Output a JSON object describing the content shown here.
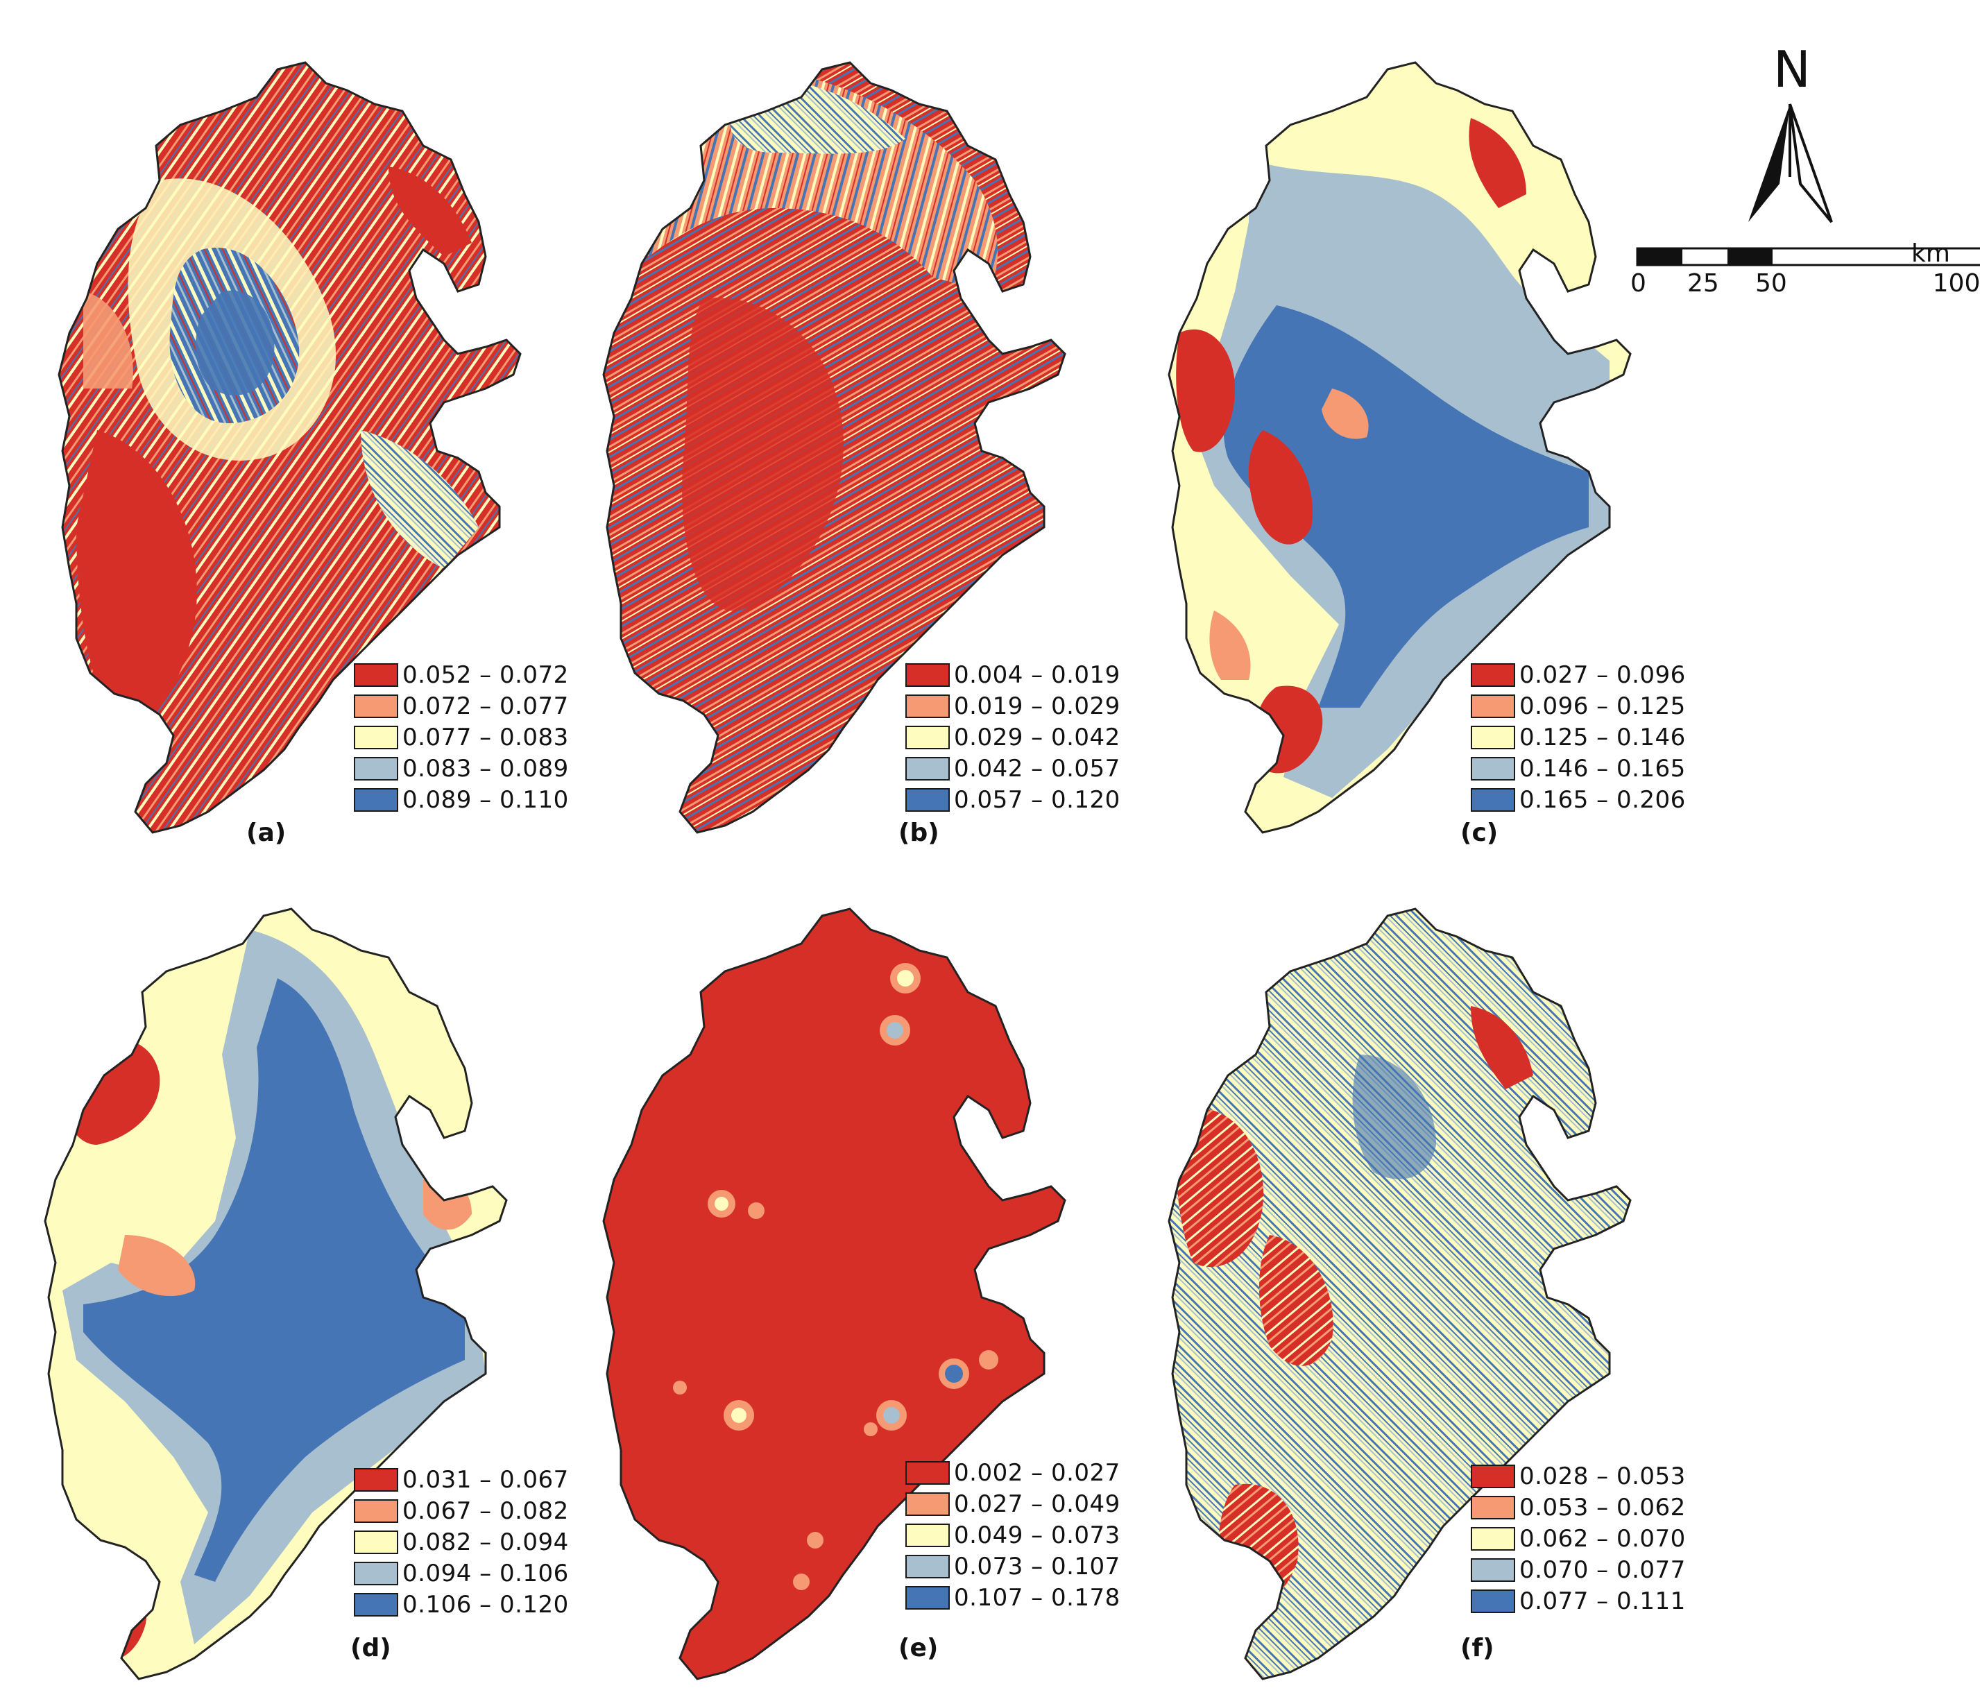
{
  "colors": {
    "class1": "#d62f27",
    "class2": "#f59a72",
    "class3": "#fefdbf",
    "class4": "#a8bfcf",
    "class5": "#4575b4",
    "outline": "#222222"
  },
  "panels": [
    {
      "label": "(a)",
      "legend": [
        "0.052 – 0.072",
        "0.072 – 0.077",
        "0.077 – 0.083",
        "0.083 – 0.089",
        "0.089 – 0.110"
      ]
    },
    {
      "label": "(b)",
      "legend": [
        "0.004 – 0.019",
        "0.019 – 0.029",
        "0.029 – 0.042",
        "0.042 – 0.057",
        "0.057 – 0.120"
      ]
    },
    {
      "label": "(c)",
      "legend": [
        "0.027 – 0.096",
        "0.096 – 0.125",
        "0.125 – 0.146",
        "0.146 – 0.165",
        "0.165 – 0.206"
      ]
    },
    {
      "label": "(d)",
      "legend": [
        "0.031 – 0.067",
        "0.067 – 0.082",
        "0.082 – 0.094",
        "0.094 – 0.106",
        "0.106 – 0.120"
      ]
    },
    {
      "label": "(e)",
      "legend": [
        "0.002 – 0.027",
        "0.027 – 0.049",
        "0.049 – 0.073",
        "0.073 – 0.107",
        "0.107 – 0.178"
      ]
    },
    {
      "label": "(f)",
      "legend": [
        "0.028 – 0.053",
        "0.053 – 0.062",
        "0.062 – 0.070",
        "0.070 – 0.077",
        "0.077 – 0.111"
      ]
    }
  ],
  "north_arrow": {
    "letter": "N",
    "icon": "north-arrow-icon"
  },
  "scale_bar": {
    "ticks": [
      "0",
      "25",
      "50",
      "100"
    ],
    "unit": "km"
  }
}
